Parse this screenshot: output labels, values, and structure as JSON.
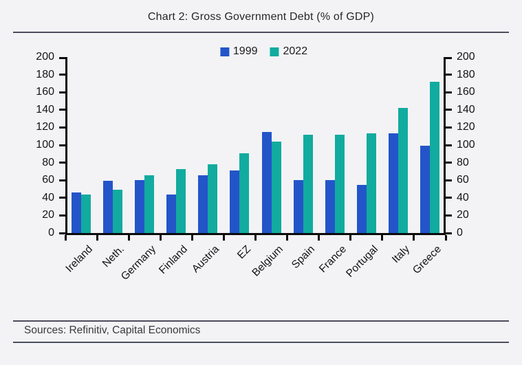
{
  "header": {
    "title": "Chart 2: Gross Government Debt (% of GDP)"
  },
  "footer": {
    "sources": "Sources: Refinitiv, Capital Economics"
  },
  "chart_data": {
    "type": "bar",
    "title": "Chart 2: Gross Government Debt (% of GDP)",
    "categories": [
      "Ireland",
      "Neth.",
      "Germany",
      "Finland",
      "Austria",
      "EZ",
      "Belgium",
      "Spain",
      "France",
      "Portugal",
      "Italy",
      "Greece"
    ],
    "series": [
      {
        "name": "1999",
        "color": "#2355c9",
        "values": [
          46,
          59,
          60,
          44,
          66,
          71,
          115,
          60,
          60,
          55,
          113,
          99
        ]
      },
      {
        "name": "2022",
        "color": "#12ab9f",
        "values": [
          44,
          49,
          66,
          73,
          78,
          91,
          104,
          112,
          112,
          113,
          142,
          172
        ]
      }
    ],
    "ylabel": "",
    "xlabel": "",
    "ylim": [
      0,
      200
    ],
    "ytick_step": 20,
    "grid": false,
    "legend_position": "top-center",
    "axes": "dual-y",
    "x_label_rotation_deg": 45
  },
  "colors": {
    "background": "#f3f3f5",
    "axis": "#0b0b0b",
    "divider": "#4c4c5e",
    "text": "#141416",
    "series_1999": "#2355c9",
    "series_2022": "#12ab9f"
  }
}
